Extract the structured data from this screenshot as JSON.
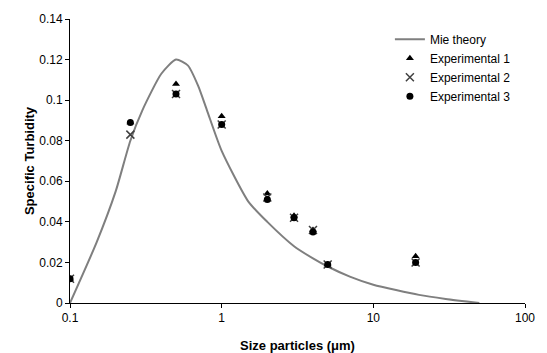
{
  "chart_data": {
    "type": "scatter",
    "x_label": "Size particles (μm)",
    "y_label": "Specific Turbidity",
    "log": "x",
    "grid": false,
    "legend": "upper right",
    "xlim": [
      0.1,
      100
    ],
    "xticks": [
      0.1,
      1,
      10,
      100
    ],
    "ylim": [
      0,
      0.14
    ],
    "yticks": [
      0,
      0.02,
      0.04,
      0.06,
      0.08,
      0.1,
      0.12,
      0.14
    ],
    "series": [
      {
        "name": "Mie theory",
        "type": "line",
        "color": "#7f7f7f",
        "line_style": "solid",
        "x": [
          0.1,
          0.15,
          0.2,
          0.25,
          0.3,
          0.4,
          0.5,
          0.6,
          0.7,
          0.8,
          1,
          1.5,
          2,
          3,
          4,
          5,
          7,
          10,
          20,
          30,
          50
        ],
        "values": [
          0.0,
          0.03,
          0.055,
          0.08,
          0.095,
          0.113,
          0.12,
          0.117,
          0.107,
          0.095,
          0.075,
          0.05,
          0.04,
          0.028,
          0.022,
          0.018,
          0.013,
          0.009,
          0.004,
          0.002,
          0.0
        ]
      },
      {
        "name": "Experimental 1",
        "type": "scatter",
        "color": "#000000",
        "marker": "triangle-up",
        "x": [
          0.1,
          0.25,
          0.5,
          1,
          2,
          3,
          4,
          5,
          19
        ],
        "values": [
          0.012,
          0.089,
          0.108,
          0.092,
          0.054,
          0.043,
          0.036,
          0.019,
          0.023
        ]
      },
      {
        "name": "Experimental 2",
        "type": "scatter",
        "color": "#404040",
        "marker": "x",
        "x": [
          0.1,
          0.25,
          0.5,
          1,
          2,
          3,
          4,
          5,
          19
        ],
        "values": [
          0.012,
          0.083,
          0.103,
          0.088,
          0.052,
          0.042,
          0.036,
          0.019,
          0.02
        ]
      },
      {
        "name": "Experimental 3",
        "type": "scatter",
        "color": "#000000",
        "marker": "circle",
        "x": [
          0.1,
          0.25,
          0.5,
          1,
          2,
          3,
          4,
          5,
          19
        ],
        "values": [
          0.012,
          0.089,
          0.103,
          0.088,
          0.051,
          0.042,
          0.035,
          0.019,
          0.02
        ]
      }
    ]
  }
}
